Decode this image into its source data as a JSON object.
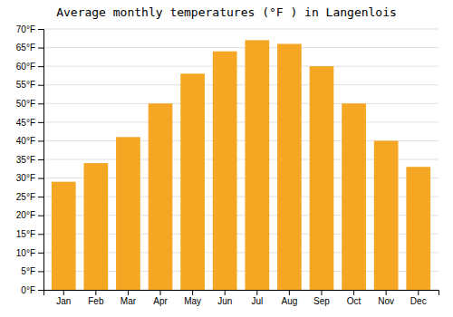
{
  "chart_data": {
    "type": "bar",
    "title": "Average monthly temperatures (°F ) in Langenlois",
    "categories": [
      "Jan",
      "Feb",
      "Mar",
      "Apr",
      "May",
      "Jun",
      "Jul",
      "Aug",
      "Sep",
      "Oct",
      "Nov",
      "Dec"
    ],
    "values": [
      29,
      34,
      41,
      50,
      58,
      64,
      67,
      66,
      60,
      50,
      40,
      33
    ],
    "color": "#F5A623",
    "ylim": [
      0,
      70
    ],
    "yticks": [
      {
        "value": 0,
        "label": "0°F"
      },
      {
        "value": 5,
        "label": "5°F"
      },
      {
        "value": 10,
        "label": "10°F"
      },
      {
        "value": 15,
        "label": "15°F"
      },
      {
        "value": 20,
        "label": "20°F"
      },
      {
        "value": 25,
        "label": "25°F"
      },
      {
        "value": 30,
        "label": "30°F"
      },
      {
        "value": 35,
        "label": "35°F"
      },
      {
        "value": 40,
        "label": "40°F"
      },
      {
        "value": 45,
        "label": "45°F"
      },
      {
        "value": 50,
        "label": "50°F"
      },
      {
        "value": 55,
        "label": "55°F"
      },
      {
        "value": 60,
        "label": "60°F"
      },
      {
        "value": 65,
        "label": "65°F"
      },
      {
        "value": 70,
        "label": "70°F"
      }
    ],
    "grid": true
  }
}
